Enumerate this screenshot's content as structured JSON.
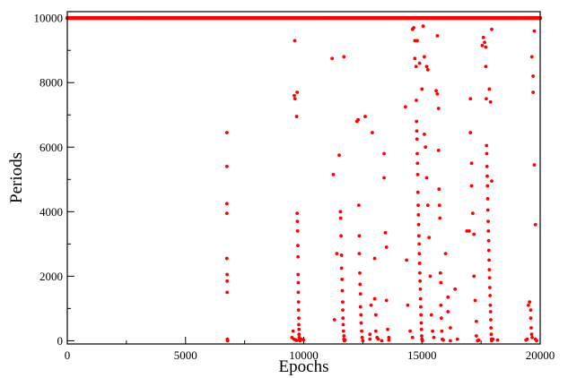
{
  "chart_data": {
    "type": "scatter",
    "title": "",
    "xlabel": "Epochs",
    "ylabel": "Periods",
    "xlim": [
      0,
      20000
    ],
    "ylim": [
      -100,
      10200
    ],
    "x_ticks": [
      0,
      5000,
      10000,
      15000,
      20000
    ],
    "y_ticks": [
      0,
      2000,
      4000,
      6000,
      8000,
      10000
    ],
    "grid": false,
    "legend": "none",
    "marker_color": "#ff0000",
    "series": [
      {
        "points": [
          [
            0,
            10000
          ],
          [
            1000,
            10000
          ],
          [
            2000,
            10000
          ],
          [
            3000,
            10000
          ],
          [
            4000,
            10000
          ],
          [
            5000,
            10000
          ],
          [
            6000,
            10000
          ],
          [
            7000,
            10000
          ],
          [
            8000,
            10000
          ],
          [
            9000,
            10000
          ],
          [
            10000,
            10000
          ],
          [
            11000,
            10000
          ],
          [
            12000,
            10000
          ],
          [
            13000,
            10000
          ],
          [
            14000,
            10000
          ],
          [
            15000,
            10000
          ],
          [
            16000,
            10000
          ],
          [
            17000,
            10000
          ],
          [
            18000,
            10000
          ],
          [
            19000,
            10000
          ],
          [
            20000,
            10000
          ],
          [
            6750,
            6450
          ],
          [
            6750,
            5400
          ],
          [
            6750,
            4250
          ],
          [
            6750,
            3950
          ],
          [
            6750,
            2550
          ],
          [
            6760,
            2050
          ],
          [
            6760,
            1850
          ],
          [
            6760,
            1500
          ],
          [
            6770,
            50
          ],
          [
            6770,
            20
          ],
          [
            6780,
            0
          ],
          [
            9500,
            100
          ],
          [
            9550,
            300
          ],
          [
            9580,
            50
          ],
          [
            9600,
            7600
          ],
          [
            9620,
            9300
          ],
          [
            9630,
            7500
          ],
          [
            9700,
            6950
          ],
          [
            9720,
            7700
          ],
          [
            9720,
            3950
          ],
          [
            9730,
            3700
          ],
          [
            9740,
            3400
          ],
          [
            9750,
            2950
          ],
          [
            9760,
            2600
          ],
          [
            9760,
            2050
          ],
          [
            9770,
            1800
          ],
          [
            9770,
            1500
          ],
          [
            9780,
            1200
          ],
          [
            9780,
            950
          ],
          [
            9790,
            700
          ],
          [
            9790,
            500
          ],
          [
            9800,
            350
          ],
          [
            9800,
            200
          ],
          [
            9810,
            100
          ],
          [
            9820,
            50
          ],
          [
            9830,
            20
          ],
          [
            9840,
            0
          ],
          [
            9700,
            10
          ],
          [
            9650,
            30
          ],
          [
            9900,
            50
          ],
          [
            10000,
            20
          ],
          [
            11200,
            8750
          ],
          [
            11250,
            5150
          ],
          [
            11300,
            650
          ],
          [
            11400,
            2700
          ],
          [
            11500,
            5750
          ],
          [
            11550,
            4000
          ],
          [
            11560,
            3800
          ],
          [
            11580,
            3250
          ],
          [
            11600,
            2650
          ],
          [
            11600,
            2250
          ],
          [
            11620,
            1900
          ],
          [
            11630,
            1550
          ],
          [
            11650,
            1200
          ],
          [
            11650,
            950
          ],
          [
            11660,
            700
          ],
          [
            11670,
            500
          ],
          [
            11680,
            300
          ],
          [
            11700,
            150
          ],
          [
            11700,
            50
          ],
          [
            11720,
            0
          ],
          [
            11700,
            8800
          ],
          [
            11750,
            20
          ],
          [
            12250,
            6800
          ],
          [
            12300,
            6850
          ],
          [
            12330,
            4200
          ],
          [
            12350,
            3250
          ],
          [
            12350,
            2700
          ],
          [
            12370,
            2100
          ],
          [
            12380,
            1750
          ],
          [
            12400,
            1450
          ],
          [
            12400,
            1050
          ],
          [
            12420,
            800
          ],
          [
            12430,
            550
          ],
          [
            12450,
            300
          ],
          [
            12470,
            100
          ],
          [
            12500,
            0
          ],
          [
            12600,
            6950
          ],
          [
            12800,
            50
          ],
          [
            12800,
            200
          ],
          [
            12850,
            1100
          ],
          [
            12900,
            6450
          ],
          [
            13000,
            2550
          ],
          [
            13000,
            1300
          ],
          [
            13050,
            800
          ],
          [
            13050,
            300
          ],
          [
            13100,
            100
          ],
          [
            13150,
            50
          ],
          [
            13300,
            0
          ],
          [
            13400,
            5800
          ],
          [
            13400,
            5050
          ],
          [
            13450,
            3350
          ],
          [
            13500,
            2900
          ],
          [
            13500,
            1250
          ],
          [
            13550,
            350
          ],
          [
            13600,
            100
          ],
          [
            13600,
            20
          ],
          [
            14300,
            7250
          ],
          [
            14350,
            2500
          ],
          [
            14400,
            1100
          ],
          [
            14500,
            300
          ],
          [
            14600,
            100
          ],
          [
            14600,
            9650
          ],
          [
            14650,
            9700
          ],
          [
            14700,
            9300
          ],
          [
            14700,
            8750
          ],
          [
            14750,
            8500
          ],
          [
            14760,
            7450
          ],
          [
            14770,
            6800
          ],
          [
            14780,
            6500
          ],
          [
            14790,
            6250
          ],
          [
            14800,
            5800
          ],
          [
            14810,
            5500
          ],
          [
            14820,
            5150
          ],
          [
            14830,
            4600
          ],
          [
            14840,
            4200
          ],
          [
            14850,
            3900
          ],
          [
            14860,
            3600
          ],
          [
            14870,
            3250
          ],
          [
            14880,
            3000
          ],
          [
            14890,
            2700
          ],
          [
            14900,
            2400
          ],
          [
            14910,
            2100
          ],
          [
            14920,
            1850
          ],
          [
            14930,
            1600
          ],
          [
            14940,
            1300
          ],
          [
            14950,
            1050
          ],
          [
            14960,
            800
          ],
          [
            14970,
            550
          ],
          [
            14980,
            350
          ],
          [
            14990,
            150
          ],
          [
            15000,
            50
          ],
          [
            15020,
            0
          ],
          [
            14800,
            9300
          ],
          [
            14900,
            8600
          ],
          [
            15000,
            7800
          ],
          [
            15050,
            9750
          ],
          [
            15100,
            8800
          ],
          [
            15100,
            6400
          ],
          [
            15150,
            6000
          ],
          [
            15200,
            8500
          ],
          [
            15200,
            5050
          ],
          [
            15250,
            8400
          ],
          [
            15250,
            4200
          ],
          [
            15300,
            3200
          ],
          [
            15350,
            2000
          ],
          [
            15400,
            800
          ],
          [
            15450,
            300
          ],
          [
            15500,
            100
          ],
          [
            15600,
            7750
          ],
          [
            15650,
            7650
          ],
          [
            15700,
            7200
          ],
          [
            15700,
            5900
          ],
          [
            15720,
            4700
          ],
          [
            15740,
            4200
          ],
          [
            15760,
            3800
          ],
          [
            15780,
            2100
          ],
          [
            15800,
            1800
          ],
          [
            15800,
            1100
          ],
          [
            15820,
            700
          ],
          [
            15840,
            300
          ],
          [
            15860,
            50
          ],
          [
            15650,
            9450
          ],
          [
            15900,
            20
          ],
          [
            16000,
            2700
          ],
          [
            16100,
            1350
          ],
          [
            16100,
            900
          ],
          [
            16200,
            400
          ],
          [
            16200,
            0
          ],
          [
            16400,
            1600
          ],
          [
            16500,
            50
          ],
          [
            16900,
            3400
          ],
          [
            17000,
            3400
          ],
          [
            17050,
            7500
          ],
          [
            17050,
            6450
          ],
          [
            17100,
            5500
          ],
          [
            17100,
            4800
          ],
          [
            17150,
            3950
          ],
          [
            17200,
            3300
          ],
          [
            17200,
            2000
          ],
          [
            17250,
            1250
          ],
          [
            17300,
            600
          ],
          [
            17300,
            150
          ],
          [
            17350,
            0
          ],
          [
            17400,
            20
          ],
          [
            17550,
            9150
          ],
          [
            17600,
            9400
          ],
          [
            17650,
            9250
          ],
          [
            17700,
            9100
          ],
          [
            17700,
            8500
          ],
          [
            17720,
            7500
          ],
          [
            17730,
            6050
          ],
          [
            17740,
            5800
          ],
          [
            17750,
            5400
          ],
          [
            17760,
            5100
          ],
          [
            17770,
            4800
          ],
          [
            17780,
            4400
          ],
          [
            17790,
            4050
          ],
          [
            17800,
            3700
          ],
          [
            17810,
            3400
          ],
          [
            17820,
            3100
          ],
          [
            17830,
            2800
          ],
          [
            17840,
            2500
          ],
          [
            17850,
            2200
          ],
          [
            17860,
            1950
          ],
          [
            17870,
            1650
          ],
          [
            17880,
            1400
          ],
          [
            17890,
            1100
          ],
          [
            17900,
            900
          ],
          [
            17910,
            650
          ],
          [
            17920,
            400
          ],
          [
            17930,
            200
          ],
          [
            17940,
            50
          ],
          [
            17950,
            0
          ],
          [
            17850,
            7800
          ],
          [
            17900,
            7400
          ],
          [
            17950,
            9650
          ],
          [
            17950,
            4950
          ],
          [
            18000,
            50
          ],
          [
            18200,
            20
          ],
          [
            19400,
            20
          ],
          [
            19450,
            50
          ],
          [
            19500,
            1100
          ],
          [
            19550,
            1200
          ],
          [
            19600,
            950
          ],
          [
            19600,
            700
          ],
          [
            19620,
            400
          ],
          [
            19640,
            200
          ],
          [
            19650,
            8800
          ],
          [
            19660,
            100
          ],
          [
            19700,
            8200
          ],
          [
            19700,
            7700
          ],
          [
            19750,
            9600
          ],
          [
            19750,
            5450
          ],
          [
            19800,
            3600
          ],
          [
            19800,
            50
          ],
          [
            19850,
            0
          ]
        ]
      }
    ]
  }
}
